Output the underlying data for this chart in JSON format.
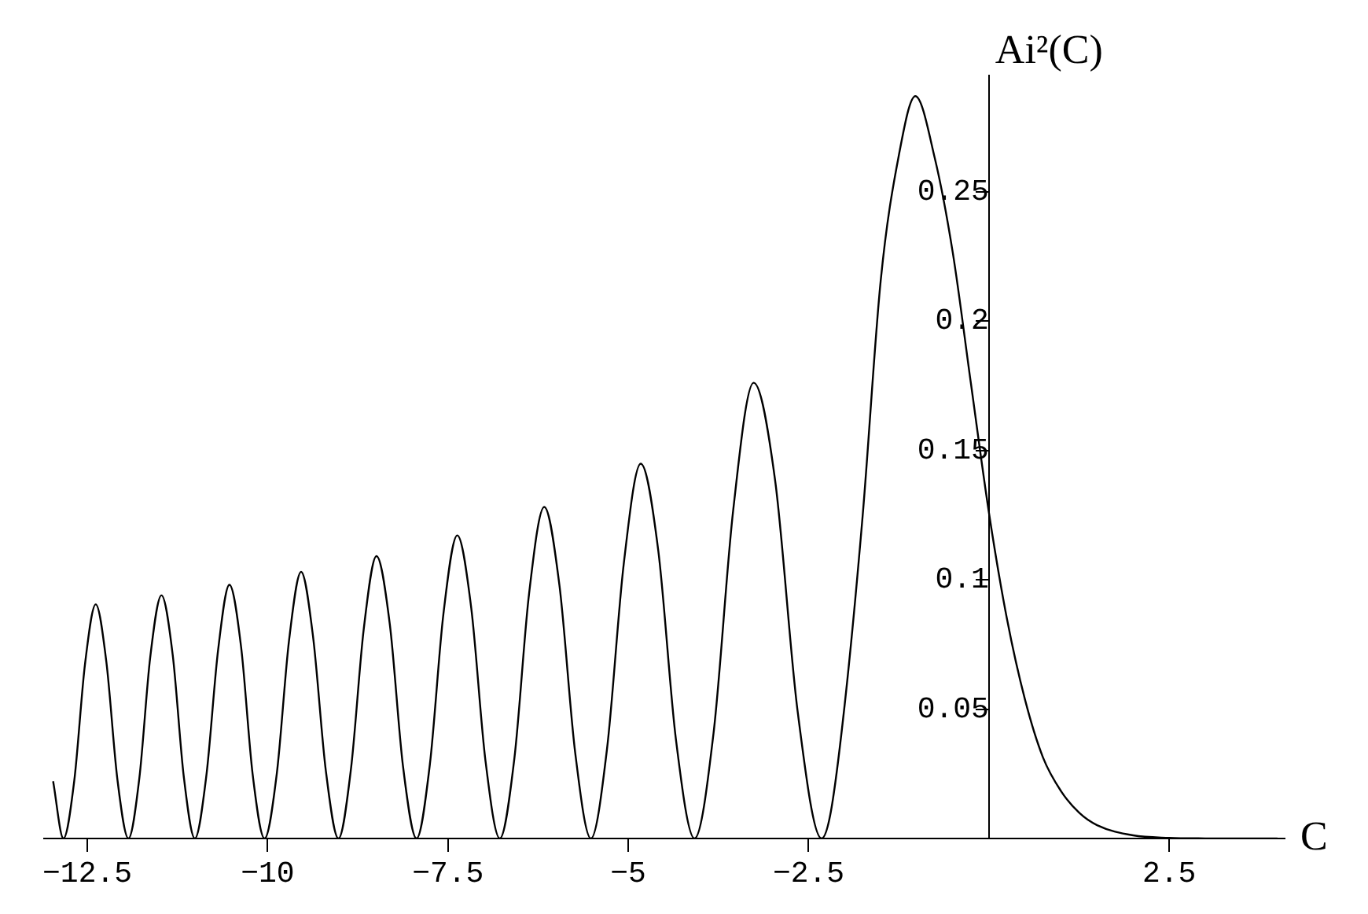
{
  "chart_data": {
    "type": "line",
    "xlabel": "C",
    "ylabel": "Ai²(C)",
    "x": [
      -12.974,
      -12.831,
      -12.681,
      -12.532,
      -12.383,
      -12.236,
      -12.083,
      -11.93,
      -11.779,
      -11.628,
      -11.472,
      -11.316,
      -11.162,
      -11.009,
      -10.85,
      -10.686,
      -10.53,
      -10.368,
      -10.208,
      -10.043,
      -9.872,
      -9.703,
      -9.536,
      -9.37,
      -9.193,
      -9.018,
      -8.845,
      -8.667,
      -8.491,
      -8.306,
      -8.123,
      -7.935,
      -7.751,
      -7.563,
      -7.371,
      -7.177,
      -6.98,
      -6.781,
      -6.579,
      -6.376,
      -6.165,
      -5.954,
      -5.736,
      -5.518,
      -5.295,
      -5.063,
      -4.827,
      -4.585,
      -4.339,
      -4.081,
      -3.818,
      -3.546,
      -3.262,
      -2.965,
      -2.651,
      -2.32,
      -2.2,
      -2.0,
      -1.75,
      -1.5,
      -1.25,
      -1.02,
      -0.75,
      -0.5,
      -0.25,
      0,
      0.25,
      0.5,
      0.75,
      1.0,
      1.25,
      1.5,
      2.0,
      2.5,
      3.0,
      3.5,
      4.0
    ],
    "values": [
      0.0221,
      0,
      0.0223,
      0.0674,
      0.0905,
      0.0683,
      0.0229,
      0,
      0.0232,
      0.07,
      0.094,
      0.071,
      0.0238,
      0,
      0.0242,
      0.073,
      0.0981,
      0.0741,
      0.0249,
      0,
      0.0253,
      0.0766,
      0.1031,
      0.078,
      0.0262,
      0,
      0.0268,
      0.0811,
      0.1092,
      0.0828,
      0.0279,
      0,
      0.0286,
      0.0868,
      0.1172,
      0.0891,
      0.0301,
      0,
      0.031,
      0.0945,
      0.1282,
      0.0978,
      0.0332,
      0,
      0.0346,
      0.1061,
      0.1449,
      0.1115,
      0.0382,
      0,
      0.0407,
      0.1268,
      0.1762,
      0.1386,
      0.0489,
      0,
      0.0091,
      0.0517,
      0.125,
      0.2158,
      0.264,
      0.287,
      0.263,
      0.2263,
      0.176,
      0.126,
      0.0849,
      0.0537,
      0.0313,
      0.0183,
      0.00998,
      0.00514,
      0.00122,
      0.00025,
      4e-05,
      0,
      0
    ],
    "color": "#000000",
    "marker": "none",
    "line_style": "solid",
    "xlim": [
      -13.1,
      4.1
    ],
    "ylim": [
      0,
      0.295
    ],
    "xticks": [
      -12.5,
      -10,
      -7.5,
      -5,
      -2.5,
      2.5
    ],
    "yticks": [
      0.05,
      0.1,
      0.15,
      0.2,
      0.25
    ]
  }
}
